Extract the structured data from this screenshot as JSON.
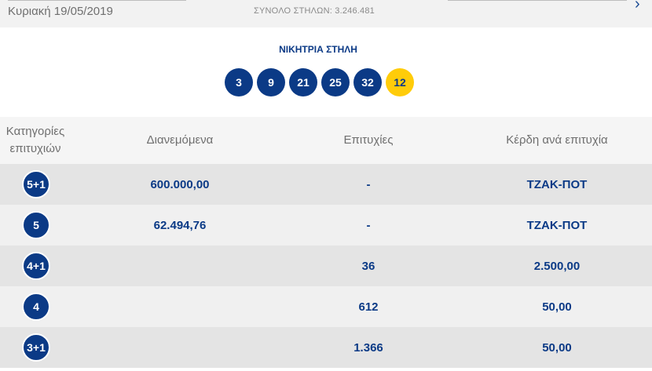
{
  "header": {
    "draw_date": "Κυριακή 19/05/2019",
    "total_columns": "ΣΥΝΟΛΟ ΣΤΗΛΩΝ: 3.246.481",
    "next_arrow": "›"
  },
  "winning": {
    "title": "ΝΙΚΗΤΡΙΑ ΣΤΗΛΗ",
    "numbers": [
      "3",
      "9",
      "21",
      "25",
      "32"
    ],
    "bonus": "12"
  },
  "table": {
    "headers": {
      "category": "Κατηγορίες επιτυχιών",
      "distributed": "Διανεμόμενα",
      "successes": "Επιτυχίες",
      "prize_per_success": "Κέρδη ανά επιτυχία"
    },
    "rows": [
      {
        "category": "5+1",
        "distributed": "600.000,00",
        "successes": "-",
        "prize": "ΤΖΑΚ-ΠΟΤ"
      },
      {
        "category": "5",
        "distributed": "62.494,76",
        "successes": "-",
        "prize": "ΤΖΑΚ-ΠΟΤ"
      },
      {
        "category": "4+1",
        "distributed": "",
        "successes": "36",
        "prize": "2.500,00"
      },
      {
        "category": "4",
        "distributed": "",
        "successes": "612",
        "prize": "50,00"
      },
      {
        "category": "3+1",
        "distributed": "",
        "successes": "1.366",
        "prize": "50,00"
      }
    ]
  },
  "colors": {
    "primary": "#0b3a86",
    "bonus_ball": "#ffcc0a",
    "row_dark": "#e4e4e4",
    "row_light": "#f0f0f0"
  }
}
